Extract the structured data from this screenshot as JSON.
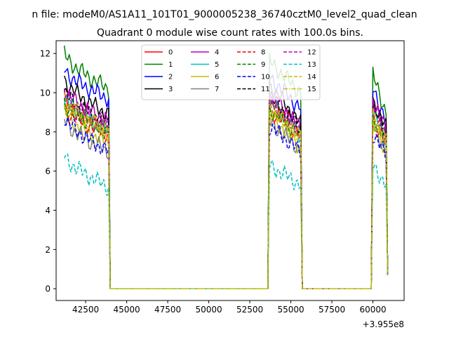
{
  "figure": {
    "suptitle": "n file: modeM0/AS1A11_101T01_9000005238_36740cztM0_level2_quad_clean",
    "title": "Quadrant 0 module wise count rates with 100.0s bins.",
    "x_offset_label": "+3.955e8"
  },
  "chart_data": {
    "type": "line",
    "title": "Quadrant 0 module wise count rates with 100.0s bins.",
    "xlabel": "",
    "ylabel": "",
    "x_offset": "+3.955e8",
    "xlim": [
      40700,
      61900
    ],
    "ylim": [
      -0.6,
      12.65
    ],
    "xticks": [
      42500,
      45000,
      47500,
      50000,
      52500,
      55000,
      57500,
      60000
    ],
    "xtick_labels": [
      "42500",
      "45000",
      "47500",
      "50000",
      "52500",
      "55000",
      "57500",
      "60000"
    ],
    "yticks": [
      0,
      2,
      4,
      6,
      8,
      10,
      12
    ],
    "ytick_labels": [
      "0",
      "2",
      "4",
      "6",
      "8",
      "10",
      "12"
    ],
    "grid": false,
    "legend": {
      "placement": "top-center",
      "columns": 4
    },
    "segments": [
      {
        "start": 41200,
        "end": 43900,
        "step": 100
      },
      {
        "start": 53700,
        "end": 55600,
        "step": 100
      },
      {
        "start": 60000,
        "end": 60800,
        "step": 100
      }
    ],
    "gaps": [
      {
        "from": 44000,
        "to": 53600,
        "value": 0
      },
      {
        "from": 55700,
        "to": 59900,
        "value": 0
      }
    ],
    "series": [
      {
        "name": "0",
        "color": "#ff0000",
        "style": "solid",
        "segment_levels": [
          [
            9.6,
            8.0
          ],
          [
            9.5,
            8.0
          ],
          [
            9.2,
            7.5
          ]
        ]
      },
      {
        "name": "1",
        "color": "#008000",
        "style": "solid",
        "segment_levels": [
          [
            12.0,
            10.2
          ],
          [
            11.6,
            10.0
          ],
          [
            10.9,
            9.0
          ]
        ]
      },
      {
        "name": "2",
        "color": "#0000ff",
        "style": "solid",
        "segment_levels": [
          [
            11.2,
            9.7
          ],
          [
            10.8,
            9.2
          ],
          [
            10.2,
            8.6
          ]
        ]
      },
      {
        "name": "3",
        "color": "#000000",
        "style": "solid",
        "segment_levels": [
          [
            10.7,
            8.9
          ],
          [
            10.4,
            8.4
          ],
          [
            9.6,
            8.2
          ]
        ]
      },
      {
        "name": "4",
        "color": "#bf00bf",
        "style": "solid",
        "segment_levels": [
          [
            10.2,
            8.5
          ],
          [
            10.0,
            8.2
          ],
          [
            9.7,
            8.0
          ]
        ]
      },
      {
        "name": "5",
        "color": "#00bfbf",
        "style": "solid",
        "segment_levels": [
          [
            9.8,
            8.0
          ],
          [
            9.6,
            7.8
          ],
          [
            9.0,
            7.5
          ]
        ]
      },
      {
        "name": "6",
        "color": "#bfbf00",
        "style": "solid",
        "segment_levels": [
          [
            9.0,
            7.4
          ],
          [
            8.9,
            7.2
          ],
          [
            8.5,
            7.0
          ]
        ]
      },
      {
        "name": "7",
        "color": "#808080",
        "style": "solid",
        "segment_levels": [
          [
            8.6,
            7.0
          ],
          [
            8.5,
            7.1
          ],
          [
            8.3,
            7.0
          ]
        ]
      },
      {
        "name": "8",
        "color": "#ff0000",
        "style": "dashed",
        "segment_levels": [
          [
            9.2,
            7.9
          ],
          [
            9.1,
            7.9
          ],
          [
            8.6,
            7.6
          ]
        ]
      },
      {
        "name": "9",
        "color": "#008000",
        "style": "dashed",
        "segment_levels": [
          [
            9.5,
            8.0
          ],
          [
            9.2,
            7.8
          ],
          [
            8.8,
            7.5
          ]
        ]
      },
      {
        "name": "10",
        "color": "#0000ff",
        "style": "dashed",
        "segment_levels": [
          [
            8.8,
            7.0
          ],
          [
            8.3,
            7.0
          ],
          [
            7.9,
            6.8
          ]
        ]
      },
      {
        "name": "11",
        "color": "#000000",
        "style": "dashed",
        "segment_levels": [
          [
            10.1,
            8.4
          ],
          [
            9.8,
            8.2
          ],
          [
            9.3,
            7.9
          ]
        ]
      },
      {
        "name": "12",
        "color": "#bf00bf",
        "style": "dashed",
        "segment_levels": [
          [
            9.9,
            8.3
          ],
          [
            9.6,
            8.1
          ],
          [
            9.4,
            7.9
          ]
        ]
      },
      {
        "name": "13",
        "color": "#00bfbf",
        "style": "dashed",
        "segment_levels": [
          [
            6.8,
            5.2
          ],
          [
            6.3,
            5.3
          ],
          [
            6.2,
            5.4
          ]
        ]
      },
      {
        "name": "14",
        "color": "#bfbf00",
        "style": "dashed",
        "segment_levels": [
          [
            9.7,
            8.0
          ],
          [
            9.3,
            7.6
          ],
          [
            8.9,
            7.4
          ]
        ]
      },
      {
        "name": "15",
        "color": "#bfbf00",
        "style": "dashdot",
        "segment_levels": [
          [
            9.5,
            8.1
          ],
          [
            9.1,
            7.7
          ],
          [
            8.7,
            7.4
          ]
        ]
      }
    ]
  }
}
